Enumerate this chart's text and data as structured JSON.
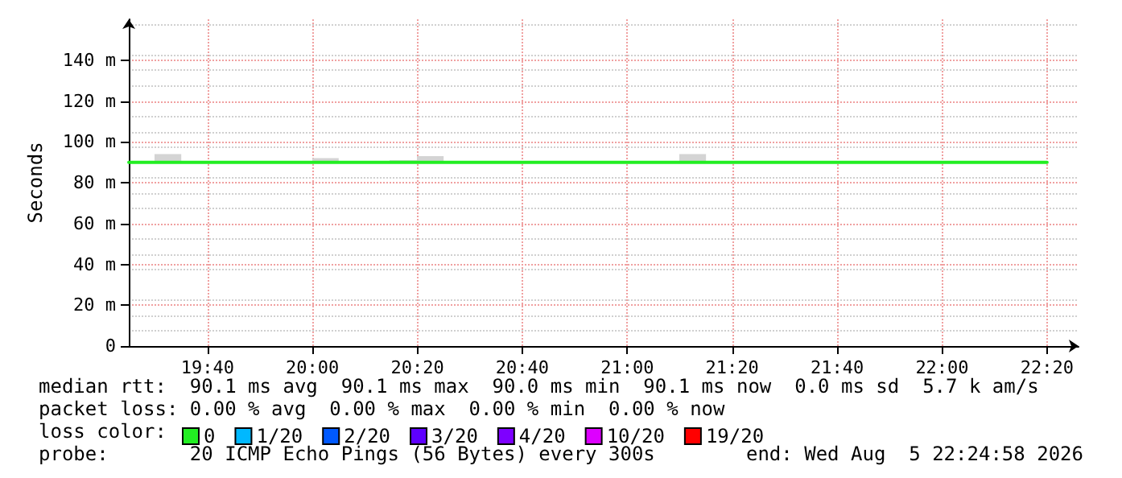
{
  "chart_data": {
    "type": "step",
    "ylabel": "Seconds",
    "legend_title": "loss color:",
    "x": [
      "--08-05T19:25",
      "--08-05T19:30",
      "--08-05T19:35",
      "--08-05T19:40",
      "--08-05T19:45",
      "--08-05T19:50",
      "--08-05T19:55",
      "--08-05T20:00",
      "--08-05T20:05",
      "--08-05T20:10",
      "--08-05T20:15",
      "--08-05T20:20",
      "--08-05T20:25",
      "--08-05T20:30",
      "--08-05T20:35",
      "--08-05T20:40",
      "--08-05T20:45",
      "--08-05T20:50",
      "--08-05T20:55",
      "--08-05T21:00",
      "--08-05T21:05",
      "--08-05T21:10",
      "--08-05T21:15",
      "--08-05T21:20",
      "--08-05T21:25",
      "--08-05T21:30",
      "--08-05T21:35",
      "--08-05T21:40",
      "--08-05T21:45",
      "--08-05T21:50",
      "--08-05T21:55",
      "--08-05T22:00",
      "--08-05T22:05",
      "--08-05T22:10",
      "--08-05T22:15",
      "--08-05T22:20"
    ],
    "series": [
      {
        "name": "0",
        "color": "#22ee22",
        "values": [
          90,
          90,
          90,
          90,
          90,
          90,
          90,
          90,
          90,
          90,
          90,
          90,
          90,
          90,
          90,
          90,
          90,
          90,
          90,
          90,
          90,
          90,
          90,
          90,
          90,
          90,
          90,
          90,
          90,
          90,
          90,
          90,
          90,
          90,
          90,
          90
        ],
        "lower": [
          null,
          90,
          90,
          null,
          null,
          null,
          null,
          90,
          90,
          null,
          90,
          90,
          90,
          null,
          null,
          null,
          null,
          null,
          null,
          null,
          null,
          90,
          90,
          null,
          null,
          null,
          null,
          null,
          null,
          null,
          null,
          null,
          null,
          null,
          null,
          null
        ],
        "upper": [
          null,
          94,
          94,
          null,
          null,
          null,
          null,
          92,
          92,
          null,
          91,
          93,
          93,
          null,
          null,
          null,
          null,
          null,
          null,
          null,
          null,
          94,
          94,
          null,
          null,
          null,
          null,
          null,
          null,
          null,
          null,
          null,
          null,
          null,
          null,
          null
        ]
      },
      {
        "name": "1/20",
        "color": "#00b8ff",
        "values": [
          null,
          null,
          null,
          null,
          null,
          null,
          null,
          null,
          null,
          null,
          null,
          null,
          null,
          null,
          null,
          null,
          null,
          null,
          null,
          null,
          null,
          null,
          null,
          null,
          null,
          null,
          null,
          null,
          null,
          null,
          null,
          null,
          null,
          null,
          null,
          null
        ]
      },
      {
        "name": "2/20",
        "color": "#0059ff",
        "values": [
          null,
          null,
          null,
          null,
          null,
          null,
          null,
          null,
          null,
          null,
          null,
          null,
          null,
          null,
          null,
          null,
          null,
          null,
          null,
          null,
          null,
          null,
          null,
          null,
          null,
          null,
          null,
          null,
          null,
          null,
          null,
          null,
          null,
          null,
          null,
          null
        ]
      },
      {
        "name": "3/20",
        "color": "#5e00ff",
        "values": [
          null,
          null,
          null,
          null,
          null,
          null,
          null,
          null,
          null,
          null,
          null,
          null,
          null,
          null,
          null,
          null,
          null,
          null,
          null,
          null,
          null,
          null,
          null,
          null,
          null,
          null,
          null,
          null,
          null,
          null,
          null,
          null,
          null,
          null,
          null,
          null
        ]
      },
      {
        "name": "4/20",
        "color": "#7e00ff",
        "values": [
          null,
          null,
          null,
          null,
          null,
          null,
          null,
          null,
          null,
          null,
          null,
          null,
          null,
          null,
          null,
          null,
          null,
          null,
          null,
          null,
          null,
          null,
          null,
          null,
          null,
          null,
          null,
          null,
          null,
          null,
          null,
          null,
          null,
          null,
          null,
          null
        ]
      },
      {
        "name": "10/20",
        "color": "#dd00ff",
        "values": [
          null,
          null,
          null,
          null,
          null,
          null,
          null,
          null,
          null,
          null,
          null,
          null,
          null,
          null,
          null,
          null,
          null,
          null,
          null,
          null,
          null,
          null,
          null,
          null,
          null,
          null,
          null,
          null,
          null,
          null,
          null,
          null,
          null,
          null,
          null,
          null
        ]
      },
      {
        "name": "19/20",
        "color": "#ff0000",
        "values": [
          null,
          null,
          null,
          null,
          null,
          null,
          null,
          null,
          null,
          null,
          null,
          null,
          null,
          null,
          null,
          null,
          null,
          null,
          null,
          null,
          null,
          null,
          null,
          null,
          null,
          null,
          null,
          null,
          null,
          null,
          null,
          null,
          null,
          null,
          null,
          null
        ]
      }
    ],
    "xlim": [
      "--08-05T19:25",
      "--08-05T22:26"
    ],
    "xticks": [
      {
        "value": "--08-05T19:40",
        "label": "19:40"
      },
      {
        "value": "--08-05T20:00",
        "label": "20:00"
      },
      {
        "value": "--08-05T20:20",
        "label": "20:20"
      },
      {
        "value": "--08-05T20:40",
        "label": "20:40"
      },
      {
        "value": "--08-05T21:00",
        "label": "21:00"
      },
      {
        "value": "--08-05T21:20",
        "label": "21:20"
      },
      {
        "value": "--08-05T21:40",
        "label": "21:40"
      },
      {
        "value": "--08-05T22:00",
        "label": "22:00"
      },
      {
        "value": "--08-05T22:20",
        "label": "22:20"
      }
    ],
    "ylim": [
      0,
      160
    ],
    "yticks": [
      0,
      {
        "value": 20,
        "label": "20 m"
      },
      {
        "value": 40,
        "label": "40 m"
      },
      {
        "value": 60,
        "label": "60 m"
      },
      {
        "value": 80,
        "label": "80 m"
      },
      {
        "value": 100,
        "label": "100 m"
      },
      {
        "value": 120,
        "label": "120 m"
      },
      {
        "value": 140,
        "label": "140 m"
      }
    ],
    "grid": true,
    "legend": "bottom",
    "line_style": "solid",
    "marker": "none",
    "annotations": [
      "median rtt:  90.1 ms avg  90.1 ms max  90.0 ms min  90.1 ms now  0.0 ms sd  5.7 k am/s",
      "packet loss: 0.00 % avg  0.00 % max  0.00 % min  0.00 % now",
      "probe:       20 ICMP Echo Pings (56 Bytes) every 300s",
      "end: Wed Aug  5 22:24:58 2026"
    ]
  }
}
